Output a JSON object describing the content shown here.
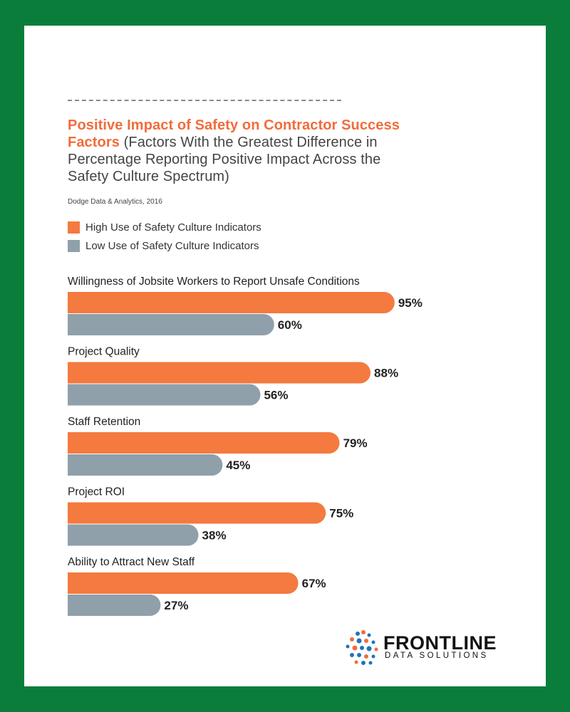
{
  "header": {
    "title_highlight": "Positive Impact of Safety on Contractor Success Factors",
    "title_rest": "(Factors With the Greatest Difference in Percentage Reporting Positive Impact Across the Safety Culture Spectrum)",
    "source": "Dodge Data & Analytics, 2016"
  },
  "brand": {
    "name": "FRONTLINE",
    "tagline": "DATA SOLUTIONS",
    "frame_color": "#0b7d3a"
  },
  "chart_data": {
    "type": "bar",
    "orientation": "horizontal",
    "title": "Positive Impact of Safety on Contractor Success Factors (Factors With the Greatest Difference in Percentage Reporting Positive Impact Across the Safety Culture Spectrum)",
    "categories": [
      "Willingness of Jobsite Workers to Report Unsafe Conditions",
      "Project Quality",
      "Staff Retention",
      "Project ROI",
      "Ability to Attract New Staff"
    ],
    "series": [
      {
        "name": "High Use of Safety Culture Indicators",
        "color": "#f47a3f",
        "values": [
          95,
          88,
          79,
          75,
          67
        ],
        "labels": [
          "95%",
          "88%",
          "79%",
          "75%",
          "67%"
        ]
      },
      {
        "name": "Low Use of Safety Culture Indicators",
        "color": "#8fa0aa",
        "values": [
          60,
          56,
          45,
          38,
          27
        ],
        "labels": [
          "60%",
          "56%",
          "45%",
          "38%",
          "27%"
        ]
      }
    ],
    "xlim": [
      0,
      100
    ],
    "grid": false,
    "legend_position": "top-left"
  }
}
